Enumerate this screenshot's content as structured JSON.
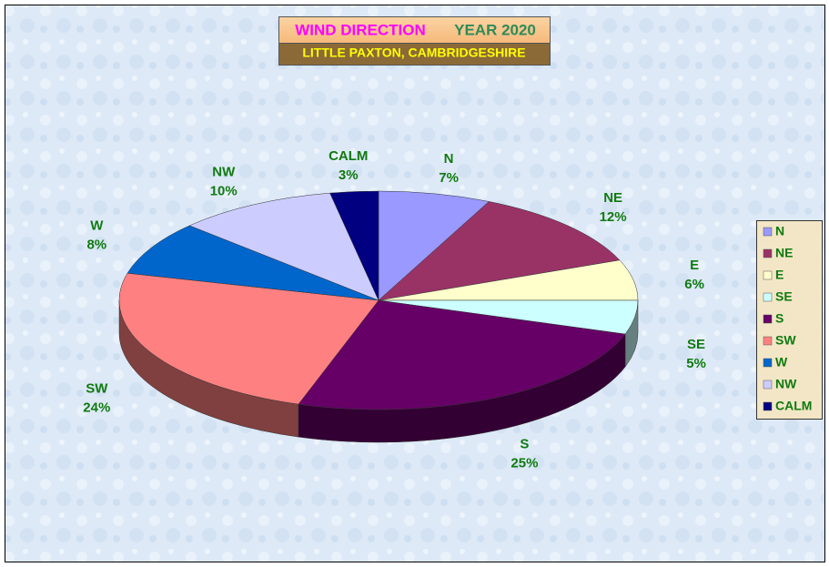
{
  "chart_data": {
    "type": "pie3d",
    "title": "WIND DIRECTION",
    "year": "YEAR 2020",
    "subtitle": "LITTLE PAXTON, CAMBRIDGESHIRE",
    "categories": [
      "N",
      "NE",
      "E",
      "SE",
      "S",
      "SW",
      "W",
      "NW",
      "CALM"
    ],
    "values": [
      7,
      12,
      6,
      5,
      25,
      24,
      8,
      10,
      3
    ],
    "value_labels": [
      "7%",
      "12%",
      "6%",
      "5%",
      "25%",
      "24%",
      "8%",
      "10%",
      "3%"
    ],
    "colors": [
      "#9999ff",
      "#993366",
      "#ffffcc",
      "#ccffff",
      "#660066",
      "#ff8080",
      "#0066cc",
      "#ccccff",
      "#000080"
    ],
    "legend": "right"
  }
}
